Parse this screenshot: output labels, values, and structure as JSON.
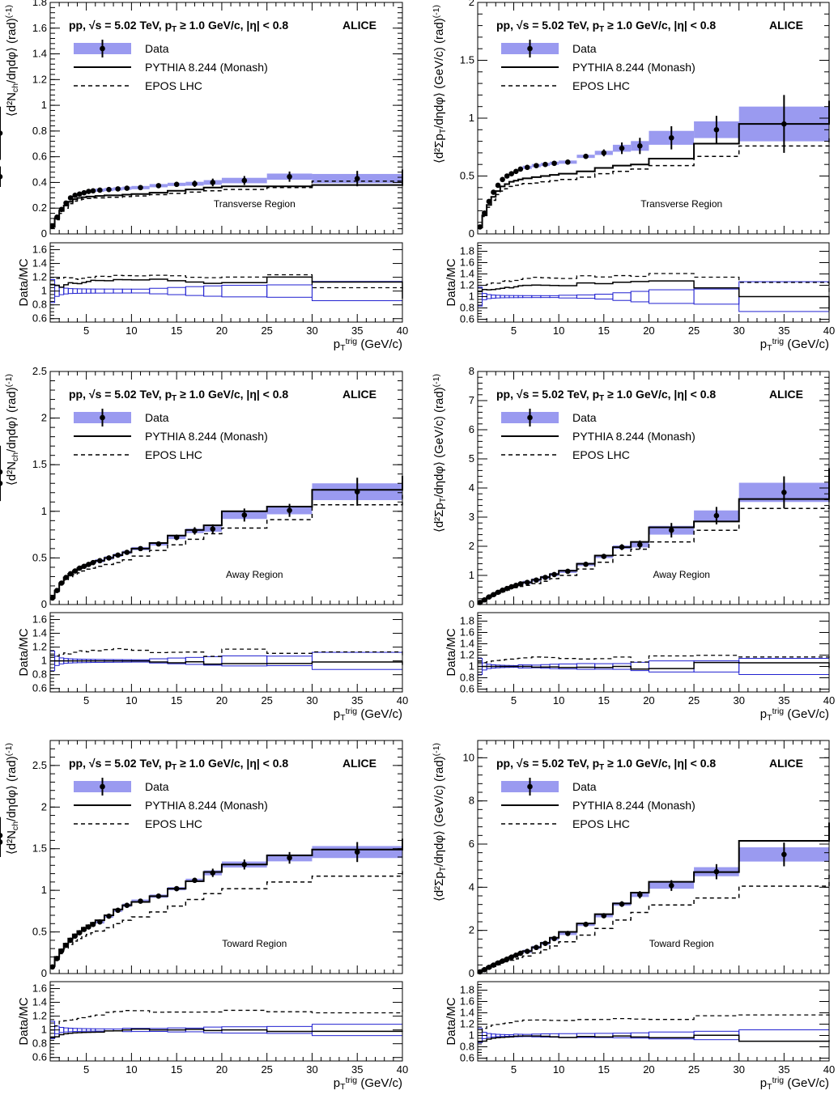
{
  "figure": {
    "header": "pp, √s = 5.02 TeV, p_T ≥ 1.0 GeV/c, |η| < 0.8",
    "experiment": "ALICE",
    "legend": [
      "Data",
      "PYTHIA 8.244 (Monash)",
      "EPOS LHC"
    ],
    "ratio_ylabel": "Data/MC",
    "xlabel": "p_T^trig (GeV/c)",
    "colors": {
      "data_band": "#9a9af0",
      "ratio_box": "#2020d0",
      "mc": "#000000"
    }
  },
  "chart_data": [
    {
      "type": "line",
      "region": "Transverse Region",
      "ylabel": "⟨d²N_ch/dηdφ⟩ (rad)^(-1)",
      "xlim": [
        1,
        40
      ],
      "ylim": [
        0,
        1.8
      ],
      "yticks": [
        "0",
        "0.2",
        "0.4",
        "0.6",
        "0.8",
        "1",
        "1.2",
        "1.4",
        "1.6",
        "1.8"
      ],
      "xticks": [
        "5",
        "10",
        "15",
        "20",
        "25",
        "30",
        "35",
        "40"
      ],
      "ratio_ylim": [
        0.55,
        1.7
      ],
      "ratio_yticks": [
        "0.6",
        "0.8",
        "1",
        "1.2",
        "1.4",
        "1.6"
      ],
      "bins": [
        1,
        1.5,
        2,
        2.5,
        3,
        3.5,
        4,
        4.5,
        5,
        5.5,
        6,
        7,
        8,
        9,
        10,
        12,
        14,
        16,
        18,
        20,
        25,
        30,
        40
      ],
      "data": [
        0.06,
        0.13,
        0.19,
        0.24,
        0.28,
        0.3,
        0.31,
        0.32,
        0.33,
        0.335,
        0.34,
        0.345,
        0.35,
        0.355,
        0.36,
        0.375,
        0.385,
        0.39,
        0.4,
        0.415,
        0.445,
        0.43,
        0.445
      ],
      "data_err": [
        0.01,
        0.01,
        0.01,
        0.01,
        0.01,
        0.01,
        0.01,
        0.01,
        0.01,
        0.01,
        0.01,
        0.01,
        0.01,
        0.01,
        0.01,
        0.015,
        0.02,
        0.025,
        0.03,
        0.035,
        0.04,
        0.06,
        0.08
      ],
      "pythia": [
        0.055,
        0.12,
        0.18,
        0.22,
        0.25,
        0.27,
        0.28,
        0.285,
        0.29,
        0.29,
        0.295,
        0.3,
        0.3,
        0.305,
        0.31,
        0.32,
        0.335,
        0.345,
        0.36,
        0.37,
        0.37,
        0.38,
        0.5
      ],
      "epos": [
        0.05,
        0.11,
        0.16,
        0.2,
        0.235,
        0.255,
        0.265,
        0.27,
        0.275,
        0.28,
        0.28,
        0.285,
        0.285,
        0.29,
        0.295,
        0.305,
        0.315,
        0.325,
        0.335,
        0.345,
        0.36,
        0.41,
        0.43
      ]
    },
    {
      "type": "line",
      "region": "Transverse Region",
      "ylabel": "⟨d²Σp_T/dηdφ⟩ (GeV/c) (rad)^(-1)",
      "xlim": [
        1,
        40
      ],
      "ylim": [
        0,
        2
      ],
      "yticks": [
        "0",
        "0.5",
        "1",
        "1.5",
        "2"
      ],
      "xticks": [
        "5",
        "10",
        "15",
        "20",
        "25",
        "30",
        "35",
        "40"
      ],
      "ratio_ylim": [
        0.55,
        1.95
      ],
      "ratio_yticks": [
        "0.6",
        "0.8",
        "1",
        "1.2",
        "1.4",
        "1.6",
        "1.8"
      ],
      "bins": [
        1,
        1.5,
        2,
        2.5,
        3,
        3.5,
        4,
        4.5,
        5,
        5.5,
        6,
        7,
        8,
        9,
        10,
        12,
        14,
        16,
        18,
        20,
        25,
        30,
        40
      ],
      "data": [
        0.06,
        0.18,
        0.28,
        0.36,
        0.42,
        0.47,
        0.5,
        0.52,
        0.54,
        0.56,
        0.575,
        0.59,
        0.6,
        0.61,
        0.62,
        0.67,
        0.7,
        0.74,
        0.76,
        0.83,
        0.9,
        0.95,
        0.87
      ],
      "data_err": [
        0.01,
        0.01,
        0.01,
        0.01,
        0.01,
        0.01,
        0.01,
        0.01,
        0.01,
        0.01,
        0.01,
        0.01,
        0.01,
        0.01,
        0.015,
        0.02,
        0.03,
        0.05,
        0.07,
        0.1,
        0.12,
        0.25,
        0.23
      ],
      "pythia": [
        0.055,
        0.16,
        0.25,
        0.32,
        0.37,
        0.41,
        0.43,
        0.45,
        0.46,
        0.47,
        0.48,
        0.49,
        0.5,
        0.51,
        0.52,
        0.54,
        0.57,
        0.59,
        0.6,
        0.65,
        0.78,
        0.95,
        1.15
      ],
      "epos": [
        0.05,
        0.15,
        0.23,
        0.29,
        0.34,
        0.37,
        0.39,
        0.41,
        0.42,
        0.43,
        0.435,
        0.44,
        0.45,
        0.46,
        0.47,
        0.49,
        0.52,
        0.54,
        0.56,
        0.59,
        0.67,
        0.76,
        0.83
      ]
    },
    {
      "type": "line",
      "region": "Away Region",
      "ylabel": "⟨d²N_ch/dηdφ⟩ (rad)^(-1)",
      "xlim": [
        1,
        40
      ],
      "ylim": [
        0,
        2.5
      ],
      "yticks": [
        "0",
        "0.5",
        "1",
        "1.5",
        "2",
        "2.5"
      ],
      "xticks": [
        "5",
        "10",
        "15",
        "20",
        "25",
        "30",
        "35",
        "40"
      ],
      "ratio_ylim": [
        0.55,
        1.7
      ],
      "ratio_yticks": [
        "0.6",
        "0.8",
        "1",
        "1.2",
        "1.4",
        "1.6"
      ],
      "bins": [
        1,
        1.5,
        2,
        2.5,
        3,
        3.5,
        4,
        4.5,
        5,
        5.5,
        6,
        7,
        8,
        9,
        10,
        12,
        14,
        16,
        18,
        20,
        25,
        30,
        40
      ],
      "data": [
        0.07,
        0.15,
        0.23,
        0.29,
        0.33,
        0.36,
        0.39,
        0.41,
        0.43,
        0.45,
        0.47,
        0.5,
        0.53,
        0.56,
        0.6,
        0.65,
        0.72,
        0.79,
        0.81,
        0.96,
        1.01,
        1.21,
        1.3
      ],
      "data_err": [
        0.01,
        0.01,
        0.01,
        0.01,
        0.01,
        0.01,
        0.01,
        0.01,
        0.01,
        0.01,
        0.01,
        0.01,
        0.01,
        0.01,
        0.01,
        0.02,
        0.03,
        0.04,
        0.05,
        0.07,
        0.07,
        0.15,
        0.19
      ],
      "pythia": [
        0.07,
        0.15,
        0.23,
        0.29,
        0.33,
        0.36,
        0.39,
        0.41,
        0.43,
        0.45,
        0.47,
        0.5,
        0.53,
        0.56,
        0.6,
        0.66,
        0.74,
        0.8,
        0.85,
        1.0,
        1.05,
        1.23,
        1.38
      ],
      "epos": [
        0.065,
        0.14,
        0.21,
        0.26,
        0.3,
        0.32,
        0.34,
        0.36,
        0.38,
        0.39,
        0.41,
        0.43,
        0.45,
        0.48,
        0.52,
        0.58,
        0.64,
        0.7,
        0.76,
        0.82,
        0.91,
        1.07,
        1.21
      ]
    },
    {
      "type": "line",
      "region": "Away Region",
      "ylabel": "⟨d²Σp_T/dηdφ⟩ (GeV/c) (rad)^(-1)",
      "xlim": [
        1,
        40
      ],
      "ylim": [
        0,
        8
      ],
      "yticks": [
        "0",
        "1",
        "2",
        "3",
        "4",
        "5",
        "6",
        "7",
        "8"
      ],
      "xticks": [
        "5",
        "10",
        "15",
        "20",
        "25",
        "30",
        "35",
        "40"
      ],
      "ratio_ylim": [
        0.55,
        1.95
      ],
      "ratio_yticks": [
        "0.6",
        "0.8",
        "1",
        "1.2",
        "1.4",
        "1.6",
        "1.8"
      ],
      "bins": [
        1,
        1.5,
        2,
        2.5,
        3,
        3.5,
        4,
        4.5,
        5,
        5.5,
        6,
        7,
        8,
        9,
        10,
        12,
        14,
        16,
        18,
        20,
        25,
        30,
        40
      ],
      "data": [
        0.07,
        0.16,
        0.26,
        0.34,
        0.42,
        0.49,
        0.55,
        0.61,
        0.66,
        0.71,
        0.76,
        0.84,
        0.93,
        1.03,
        1.14,
        1.38,
        1.65,
        1.97,
        2.05,
        2.55,
        3.05,
        3.85,
        4.55
      ],
      "data_err": [
        0.01,
        0.01,
        0.01,
        0.01,
        0.01,
        0.01,
        0.01,
        0.01,
        0.01,
        0.02,
        0.02,
        0.02,
        0.03,
        0.04,
        0.05,
        0.07,
        0.08,
        0.1,
        0.15,
        0.25,
        0.3,
        0.55,
        0.9
      ],
      "pythia": [
        0.07,
        0.16,
        0.26,
        0.34,
        0.42,
        0.49,
        0.55,
        0.61,
        0.66,
        0.71,
        0.76,
        0.85,
        0.94,
        1.04,
        1.16,
        1.4,
        1.68,
        1.97,
        2.15,
        2.65,
        2.85,
        3.62,
        4.68
      ],
      "epos": [
        0.065,
        0.15,
        0.24,
        0.31,
        0.38,
        0.44,
        0.49,
        0.54,
        0.58,
        0.62,
        0.66,
        0.72,
        0.8,
        0.89,
        1.0,
        1.22,
        1.45,
        1.69,
        1.9,
        2.15,
        2.55,
        3.3,
        4.0
      ]
    },
    {
      "type": "line",
      "region": "Toward Region",
      "ylabel": "⟨d²N_ch/dηdφ⟩ (rad)^(-1)",
      "xlim": [
        1,
        40
      ],
      "ylim": [
        0,
        2.8
      ],
      "yticks": [
        "0",
        "0.5",
        "1",
        "1.5",
        "2",
        "2.5"
      ],
      "xticks": [
        "5",
        "10",
        "15",
        "20",
        "25",
        "30",
        "35",
        "40"
      ],
      "ratio_ylim": [
        0.55,
        1.7
      ],
      "ratio_yticks": [
        "0.6",
        "0.8",
        "1",
        "1.2",
        "1.4",
        "1.6"
      ],
      "bins": [
        1,
        1.5,
        2,
        2.5,
        3,
        3.5,
        4,
        4.5,
        5,
        5.5,
        6,
        7,
        8,
        9,
        10,
        12,
        14,
        16,
        18,
        20,
        25,
        30,
        40
      ],
      "data": [
        0.08,
        0.18,
        0.27,
        0.34,
        0.4,
        0.45,
        0.49,
        0.53,
        0.56,
        0.59,
        0.62,
        0.69,
        0.76,
        0.82,
        0.87,
        0.93,
        1.02,
        1.12,
        1.21,
        1.31,
        1.39,
        1.46,
        1.58
      ],
      "data_err": [
        0.01,
        0.01,
        0.01,
        0.01,
        0.01,
        0.01,
        0.01,
        0.01,
        0.01,
        0.01,
        0.01,
        0.01,
        0.01,
        0.02,
        0.02,
        0.02,
        0.03,
        0.03,
        0.05,
        0.06,
        0.07,
        0.12,
        0.18
      ],
      "pythia": [
        0.09,
        0.2,
        0.29,
        0.36,
        0.42,
        0.47,
        0.51,
        0.55,
        0.58,
        0.61,
        0.64,
        0.7,
        0.77,
        0.82,
        0.86,
        0.93,
        1.02,
        1.11,
        1.22,
        1.31,
        1.42,
        1.49,
        1.62
      ],
      "epos": [
        0.08,
        0.17,
        0.24,
        0.3,
        0.35,
        0.39,
        0.42,
        0.45,
        0.47,
        0.49,
        0.51,
        0.55,
        0.6,
        0.64,
        0.68,
        0.74,
        0.81,
        0.89,
        0.96,
        1.02,
        1.1,
        1.17,
        1.23
      ]
    },
    {
      "type": "line",
      "region": "Toward Region",
      "ylabel": "⟨d²Σp_T/dηdφ⟩ (GeV/c) (rad)^(-1)",
      "xlim": [
        1,
        40
      ],
      "ylim": [
        0,
        10.8
      ],
      "yticks": [
        "0",
        "2",
        "4",
        "6",
        "8",
        "10"
      ],
      "xticks": [
        "5",
        "10",
        "15",
        "20",
        "25",
        "30",
        "35",
        "40"
      ],
      "ratio_ylim": [
        0.55,
        1.95
      ],
      "ratio_yticks": [
        "0.6",
        "0.8",
        "1",
        "1.2",
        "1.4",
        "1.6",
        "1.8"
      ],
      "bins": [
        1,
        1.5,
        2,
        2.5,
        3,
        3.5,
        4,
        4.5,
        5,
        5.5,
        6,
        7,
        8,
        9,
        10,
        12,
        14,
        16,
        18,
        20,
        25,
        30,
        40
      ],
      "data": [
        0.08,
        0.18,
        0.29,
        0.39,
        0.49,
        0.58,
        0.67,
        0.76,
        0.85,
        0.94,
        1.03,
        1.21,
        1.4,
        1.62,
        1.86,
        2.28,
        2.68,
        3.22,
        3.65,
        4.08,
        4.72,
        5.52,
        6.4
      ],
      "data_err": [
        0.01,
        0.01,
        0.01,
        0.01,
        0.01,
        0.01,
        0.01,
        0.01,
        0.02,
        0.02,
        0.02,
        0.03,
        0.04,
        0.05,
        0.06,
        0.08,
        0.1,
        0.13,
        0.17,
        0.25,
        0.35,
        0.55,
        0.85
      ],
      "pythia": [
        0.09,
        0.2,
        0.31,
        0.41,
        0.51,
        0.6,
        0.69,
        0.78,
        0.86,
        0.95,
        1.04,
        1.22,
        1.42,
        1.66,
        1.93,
        2.32,
        2.75,
        3.25,
        3.75,
        4.25,
        4.7,
        6.15,
        7.0
      ],
      "epos": [
        0.08,
        0.16,
        0.25,
        0.33,
        0.41,
        0.48,
        0.55,
        0.62,
        0.68,
        0.75,
        0.81,
        0.95,
        1.1,
        1.28,
        1.47,
        1.78,
        2.09,
        2.48,
        2.83,
        3.18,
        3.5,
        4.05,
        4.75
      ]
    }
  ]
}
